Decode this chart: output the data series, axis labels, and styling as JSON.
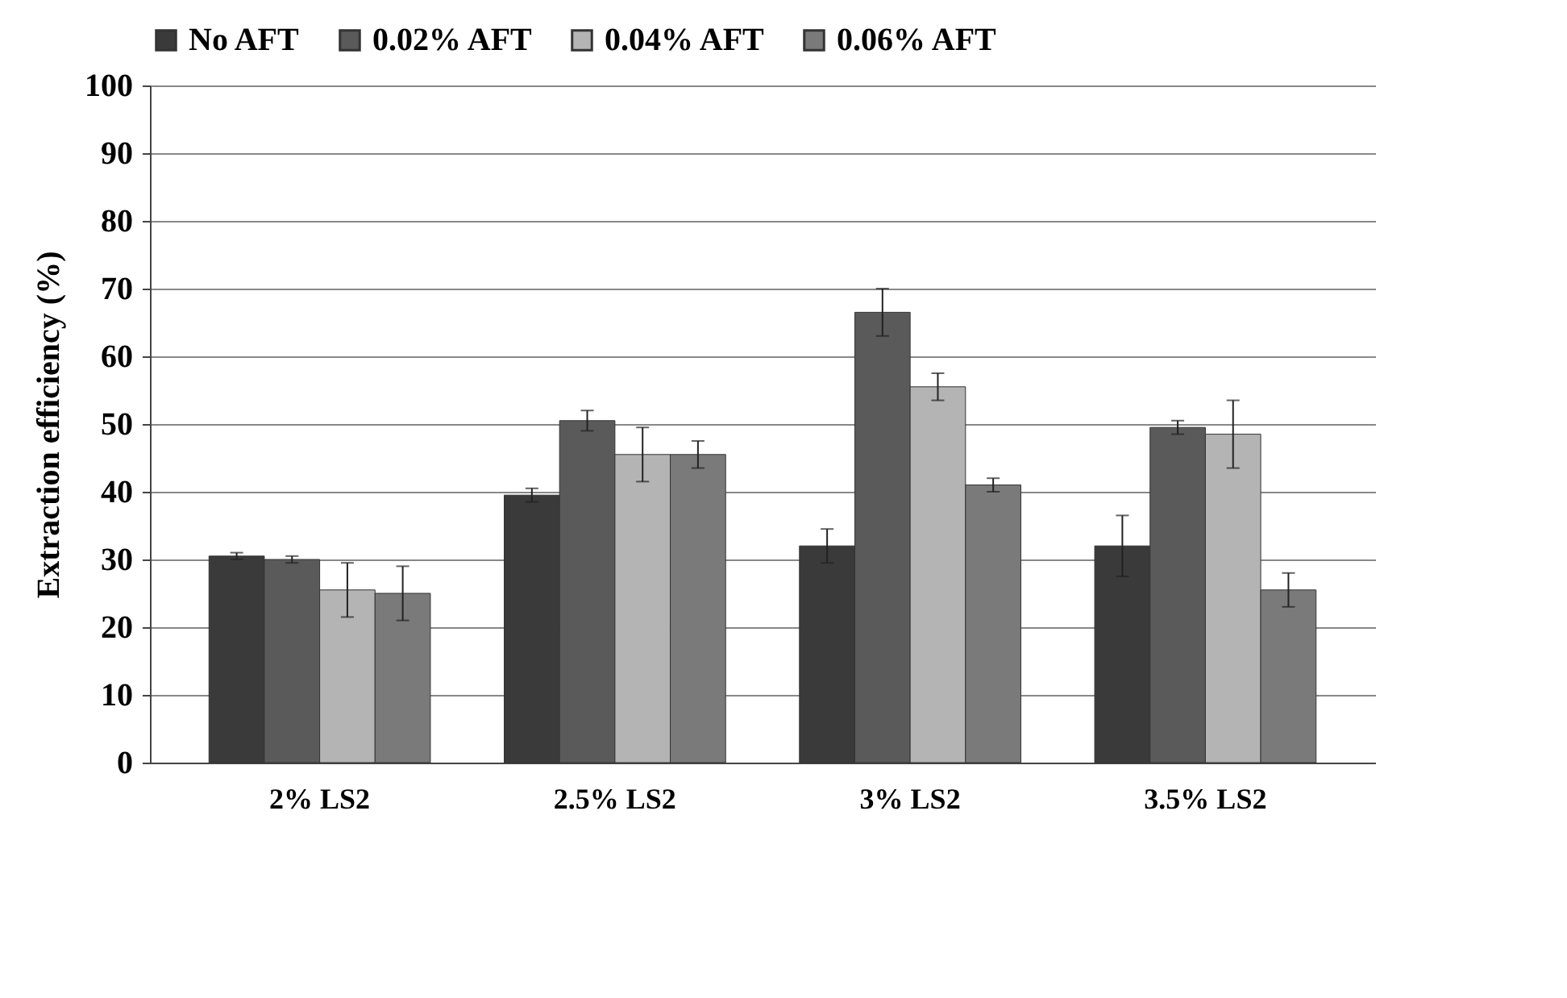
{
  "chart_data": {
    "type": "bar",
    "ylabel": "Extraction efficiency (%)",
    "categories": [
      "2% LS2",
      "2.5% LS2",
      "3% LS2",
      "3.5% LS2"
    ],
    "series": [
      {
        "name": "No AFT",
        "color": "#3a3a3a",
        "values": [
          30.5,
          39.5,
          32,
          32
        ],
        "errors": [
          0.5,
          1,
          2.5,
          4.5
        ]
      },
      {
        "name": "0.02% AFT",
        "color": "#5a5a5a",
        "values": [
          30,
          50.5,
          66.5,
          49.5
        ],
        "errors": [
          0.5,
          1.5,
          3.5,
          1
        ]
      },
      {
        "name": "0.04% AFT",
        "color": "#b4b4b4",
        "values": [
          25.5,
          45.5,
          55.5,
          48.5
        ],
        "errors": [
          4,
          4,
          2,
          5
        ]
      },
      {
        "name": "0.06% AFT",
        "color": "#7a7a7a",
        "values": [
          25,
          45.5,
          41,
          25.5
        ],
        "errors": [
          4,
          2,
          1,
          2.5
        ]
      }
    ],
    "ylim": [
      0,
      100
    ],
    "yticks": [
      0,
      10,
      20,
      30,
      40,
      50,
      60,
      70,
      80,
      90,
      100
    ],
    "grid": "y",
    "legend": "top"
  }
}
